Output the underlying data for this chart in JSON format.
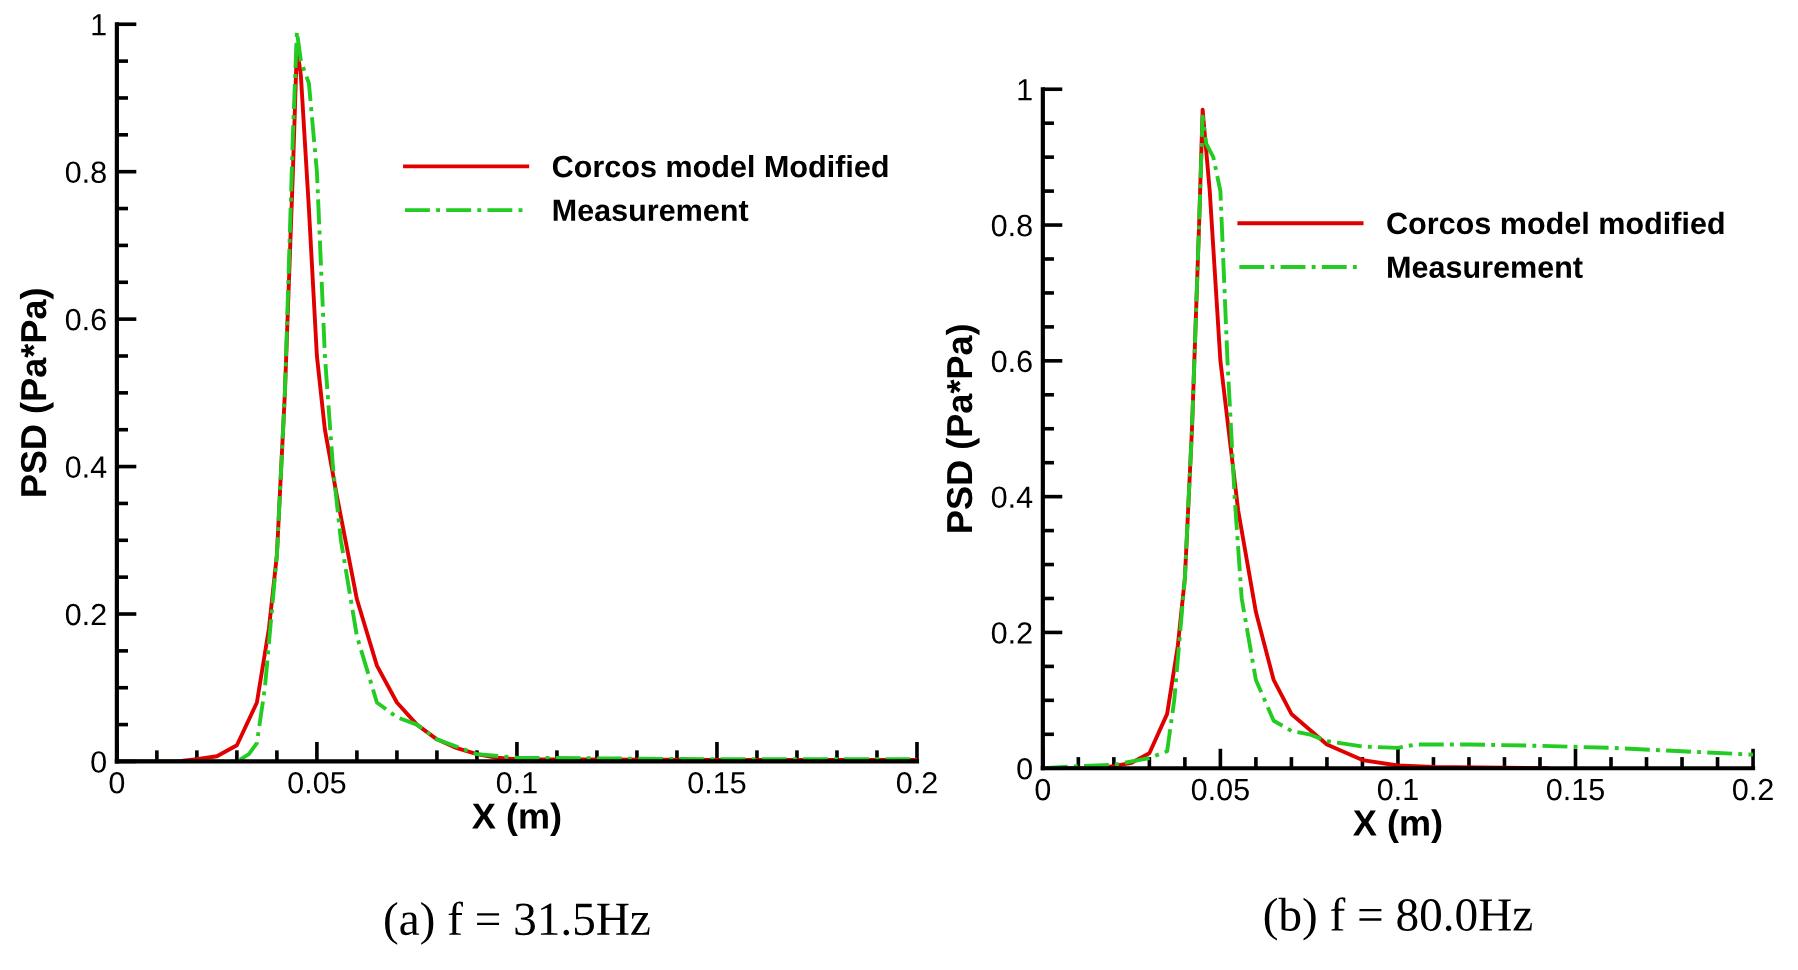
{
  "chart_data": [
    {
      "type": "line",
      "title": "(a) f = 31.5Hz",
      "xlabel": "X (m)",
      "ylabel": "PSD (Pa*Pa)",
      "xlim": [
        0,
        0.2
      ],
      "ylim": [
        0,
        1
      ],
      "xticks": [
        0,
        0.05,
        0.1,
        0.15,
        0.2
      ],
      "yticks": [
        0,
        0.2,
        0.4,
        0.6,
        0.8,
        1
      ],
      "legend": "top right",
      "grid": false,
      "series": [
        {
          "name": "Corcos model Modified",
          "color": "#e00000",
          "line_style": "solid",
          "x": [
            0,
            0.015,
            0.02,
            0.025,
            0.03,
            0.035,
            0.038,
            0.04,
            0.042,
            0.044,
            0.045,
            0.046,
            0.048,
            0.05,
            0.052,
            0.055,
            0.06,
            0.065,
            0.07,
            0.075,
            0.08,
            0.085,
            0.09,
            0.095,
            0.1,
            0.15,
            0.2
          ],
          "values": [
            0,
            0,
            0.003,
            0.007,
            0.022,
            0.08,
            0.18,
            0.28,
            0.5,
            0.8,
            0.97,
            0.93,
            0.75,
            0.55,
            0.45,
            0.36,
            0.22,
            0.13,
            0.08,
            0.05,
            0.03,
            0.018,
            0.01,
            0.005,
            0.003,
            0.002,
            0.002
          ]
        },
        {
          "name": "Measurement",
          "color": "#22cc22",
          "line_style": "dashdot",
          "x": [
            0,
            0.03,
            0.033,
            0.035,
            0.037,
            0.04,
            0.042,
            0.044,
            0.045,
            0.046,
            0.048,
            0.05,
            0.052,
            0.054,
            0.056,
            0.06,
            0.065,
            0.07,
            0.075,
            0.08,
            0.09,
            0.1,
            0.15,
            0.2
          ],
          "values": [
            0,
            0,
            0.01,
            0.025,
            0.1,
            0.28,
            0.5,
            0.85,
            0.99,
            0.95,
            0.92,
            0.8,
            0.55,
            0.4,
            0.3,
            0.17,
            0.08,
            0.06,
            0.05,
            0.03,
            0.01,
            0.005,
            0.003,
            0.003
          ]
        }
      ]
    },
    {
      "type": "line",
      "title": "(b) f = 80.0Hz",
      "xlabel": "X (m)",
      "ylabel": "PSD (Pa*Pa)",
      "xlim": [
        0,
        0.2
      ],
      "ylim": [
        0,
        1
      ],
      "xticks": [
        0,
        0.05,
        0.1,
        0.15,
        0.2
      ],
      "yticks": [
        0,
        0.2,
        0.4,
        0.6,
        0.8,
        1
      ],
      "legend": "top right",
      "grid": false,
      "series": [
        {
          "name": "Corcos model modified",
          "color": "#e00000",
          "line_style": "solid",
          "x": [
            0,
            0.015,
            0.02,
            0.025,
            0.03,
            0.035,
            0.038,
            0.04,
            0.042,
            0.044,
            0.045,
            0.047,
            0.05,
            0.055,
            0.06,
            0.065,
            0.07,
            0.08,
            0.09,
            0.1,
            0.11,
            0.142
          ],
          "values": [
            0,
            0,
            0.003,
            0.008,
            0.022,
            0.08,
            0.18,
            0.28,
            0.5,
            0.8,
            0.97,
            0.85,
            0.6,
            0.38,
            0.23,
            0.13,
            0.08,
            0.035,
            0.012,
            0.004,
            0.002,
            0
          ]
        },
        {
          "name": "Measurement",
          "color": "#22cc22",
          "line_style": "dashdot",
          "x": [
            0,
            0.01,
            0.02,
            0.025,
            0.03,
            0.035,
            0.037,
            0.04,
            0.042,
            0.044,
            0.045,
            0.046,
            0.048,
            0.05,
            0.052,
            0.054,
            0.056,
            0.06,
            0.065,
            0.07,
            0.075,
            0.08,
            0.09,
            0.1,
            0.105,
            0.12,
            0.14,
            0.16,
            0.18,
            0.2
          ],
          "values": [
            0,
            0.003,
            0.005,
            0.01,
            0.015,
            0.025,
            0.1,
            0.28,
            0.5,
            0.8,
            0.96,
            0.92,
            0.9,
            0.85,
            0.6,
            0.4,
            0.25,
            0.13,
            0.07,
            0.055,
            0.05,
            0.04,
            0.032,
            0.03,
            0.035,
            0.035,
            0.033,
            0.03,
            0.025,
            0.02
          ]
        }
      ]
    }
  ]
}
